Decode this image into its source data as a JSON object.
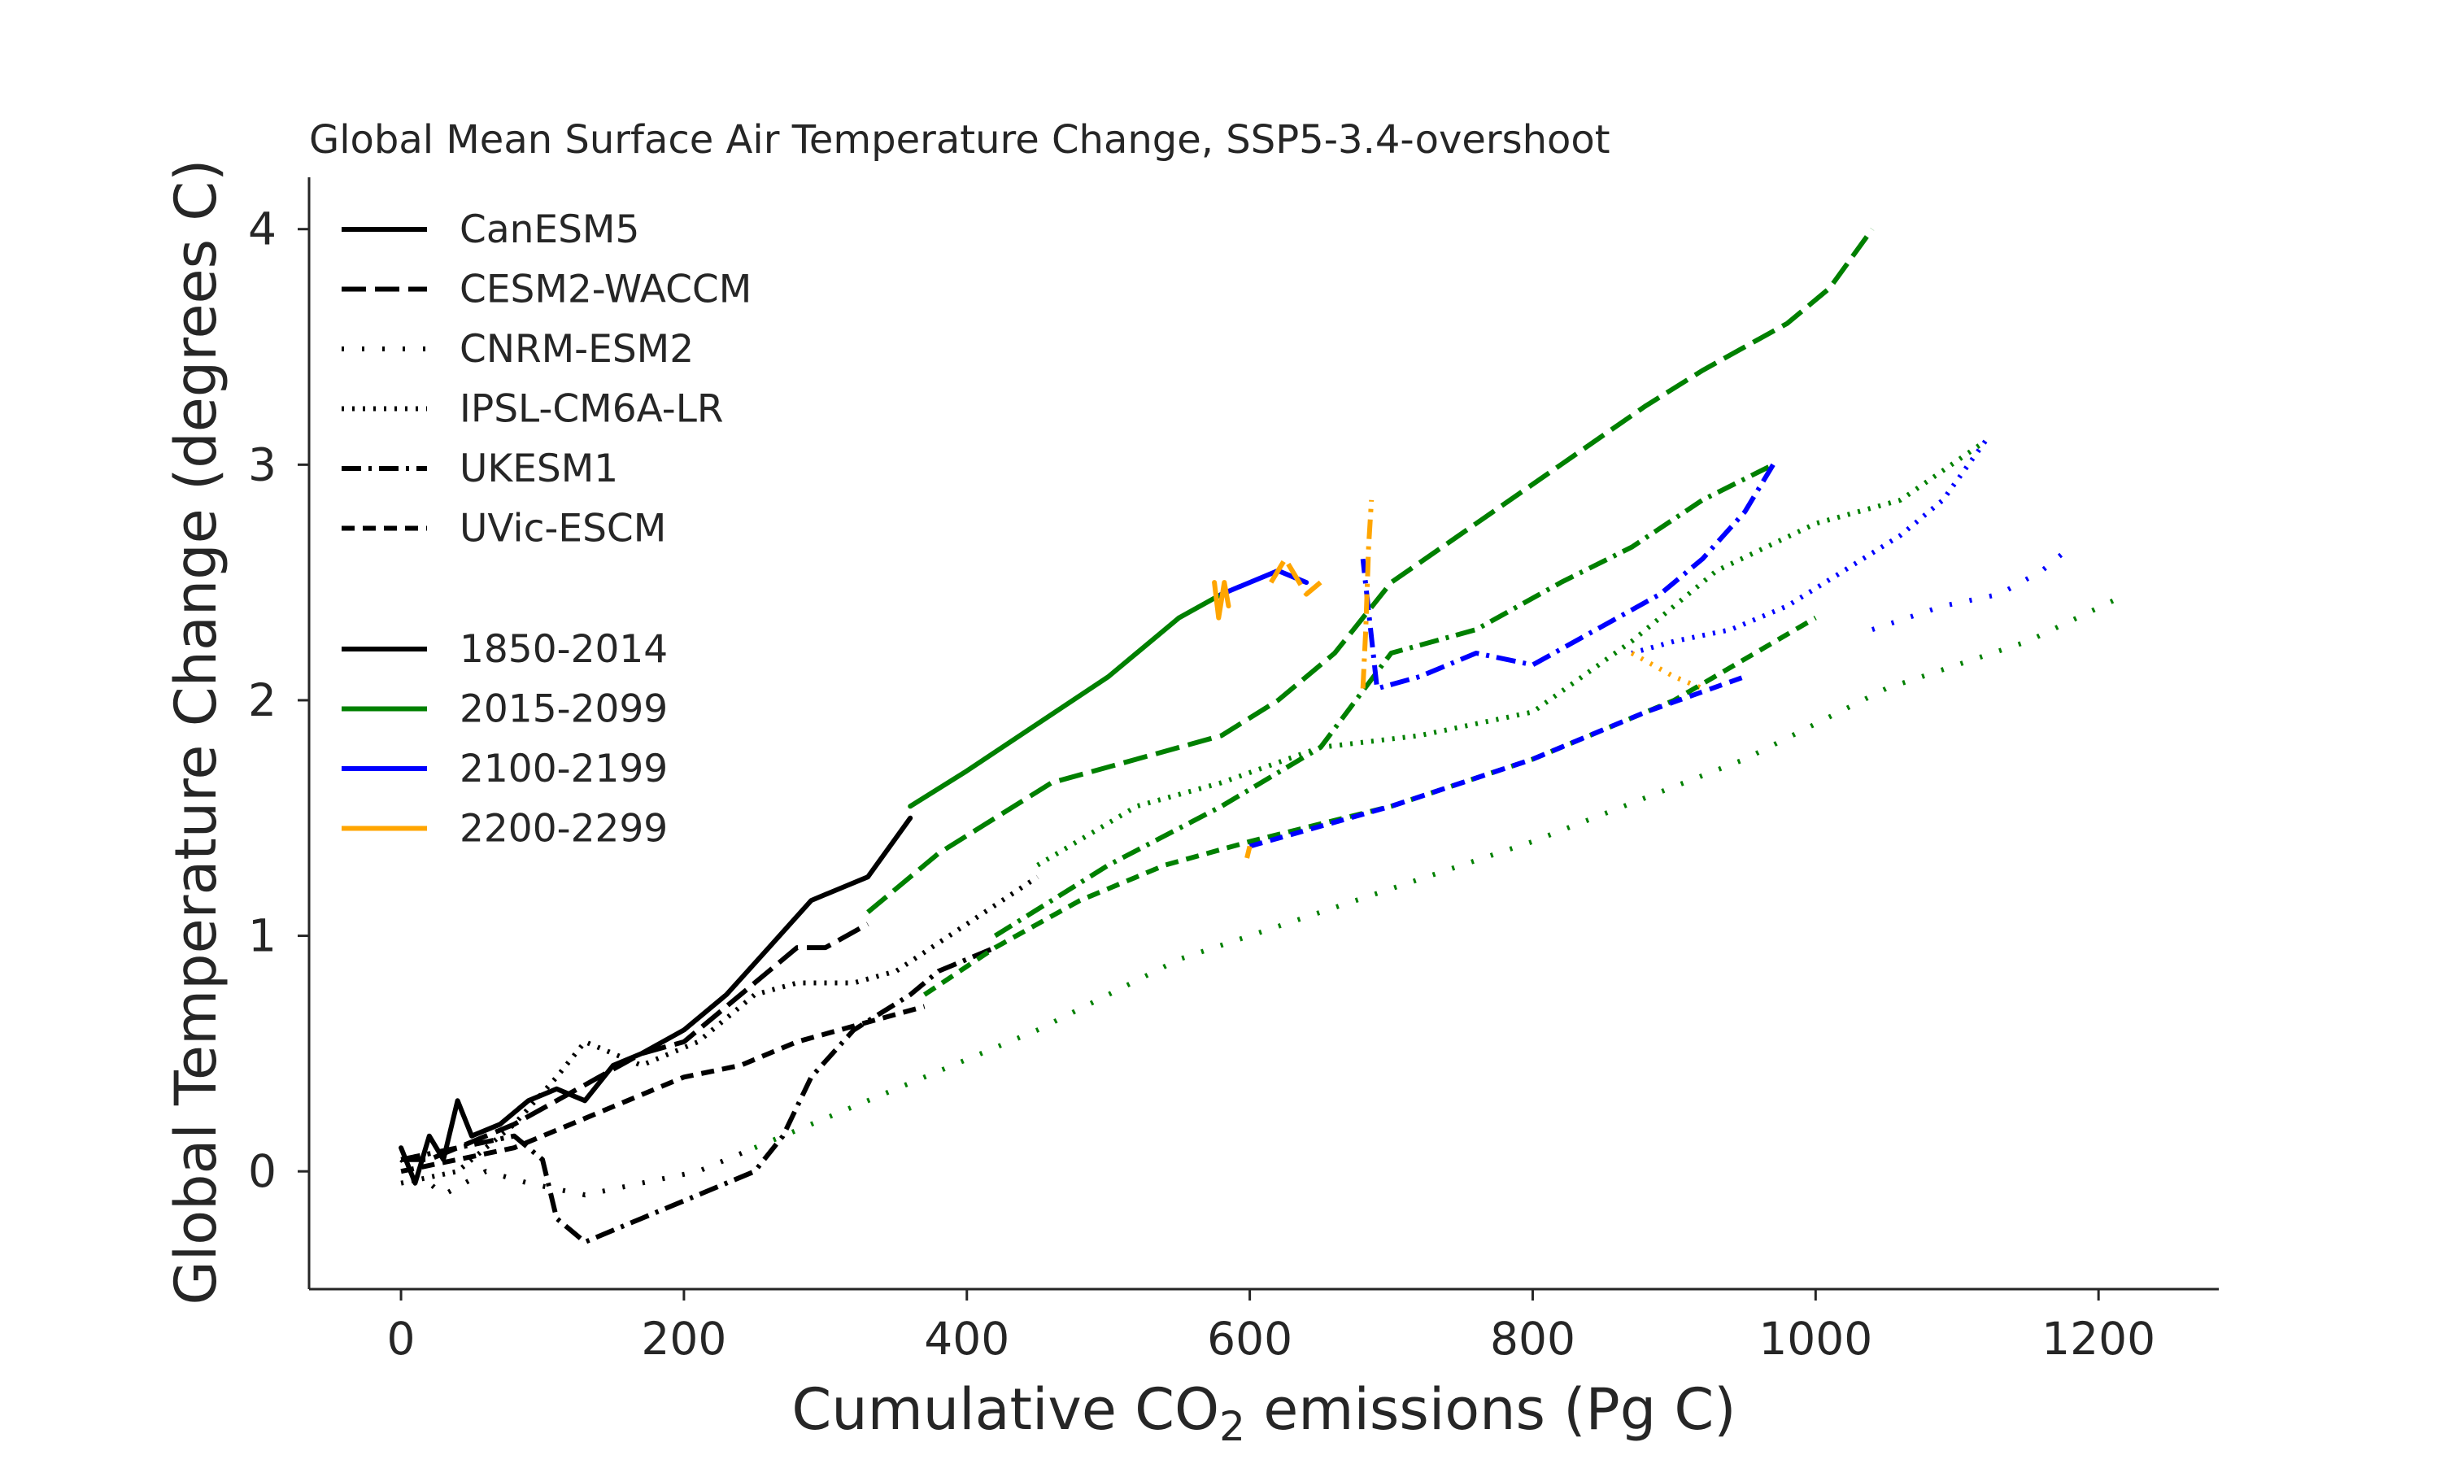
{
  "chart_data": {
    "type": "line",
    "title": "Global Mean Surface Air Temperature Change, SSP5-3.4-overshoot",
    "xlabel": "Cumulative CO",
    "xlabel_sub": "2",
    "xlabel_tail": " emissions (Pg C)",
    "ylabel": "Global Temperature Change (degrees C)",
    "xlim": [
      -65,
      1285
    ],
    "ylim": [
      -0.5,
      4.22
    ],
    "xticks": [
      0,
      200,
      400,
      600,
      800,
      1000,
      1200
    ],
    "xtick_labels": [
      "0",
      "200",
      "400",
      "600",
      "800",
      "1000",
      "1200"
    ],
    "yticks": [
      0,
      1,
      2,
      3,
      4
    ],
    "ytick_labels": [
      "0",
      "1",
      "2",
      "3",
      "4"
    ],
    "grid": false,
    "legend_position": "top-left",
    "legend_models": [
      {
        "label": "CanESM5",
        "dash": "solid"
      },
      {
        "label": "CESM2-WACCM",
        "dash": "longdash"
      },
      {
        "label": "CNRM-ESM2",
        "dash": "sparsedot"
      },
      {
        "label": "IPSL-CM6A-LR",
        "dash": "dot"
      },
      {
        "label": "UKESM1",
        "dash": "dashdot"
      },
      {
        "label": "UVic-ESCM",
        "dash": "dash"
      }
    ],
    "legend_periods": [
      {
        "label": "1850-2014",
        "color": "#000000"
      },
      {
        "label": "2015-2099",
        "color": "#008000"
      },
      {
        "label": "2100-2199",
        "color": "#0000ff"
      },
      {
        "label": "2200-2299",
        "color": "#ffa500"
      }
    ],
    "series": [
      {
        "model": "CanESM5",
        "period": "1850-2014",
        "values": [
          [
            0,
            0.1
          ],
          [
            10,
            -0.05
          ],
          [
            20,
            0.15
          ],
          [
            30,
            0.05
          ],
          [
            40,
            0.3
          ],
          [
            50,
            0.15
          ],
          [
            70,
            0.2
          ],
          [
            90,
            0.3
          ],
          [
            110,
            0.35
          ],
          [
            130,
            0.3
          ],
          [
            150,
            0.45
          ],
          [
            170,
            0.5
          ],
          [
            200,
            0.6
          ],
          [
            230,
            0.75
          ],
          [
            260,
            0.95
          ],
          [
            290,
            1.15
          ],
          [
            310,
            1.2
          ],
          [
            330,
            1.25
          ],
          [
            360,
            1.5
          ]
        ]
      },
      {
        "model": "CanESM5",
        "period": "2015-2099",
        "values": [
          [
            360,
            1.55
          ],
          [
            400,
            1.7
          ],
          [
            450,
            1.9
          ],
          [
            500,
            2.1
          ],
          [
            550,
            2.35
          ],
          [
            580,
            2.45
          ]
        ]
      },
      {
        "model": "CanESM5",
        "period": "2100-2199",
        "values": [
          [
            580,
            2.45
          ],
          [
            600,
            2.5
          ],
          [
            620,
            2.55
          ],
          [
            640,
            2.5
          ]
        ]
      },
      {
        "model": "CanESM5",
        "period": "2200-2299",
        "values": [
          [
            575,
            2.5
          ],
          [
            578,
            2.35
          ],
          [
            582,
            2.5
          ],
          [
            585,
            2.4
          ]
        ]
      },
      {
        "model": "CESM2-WACCM",
        "period": "1850-2014",
        "values": [
          [
            0,
            0.05
          ],
          [
            20,
            0.05
          ],
          [
            40,
            0.1
          ],
          [
            60,
            0.15
          ],
          [
            80,
            0.2
          ],
          [
            110,
            0.3
          ],
          [
            140,
            0.4
          ],
          [
            170,
            0.5
          ],
          [
            200,
            0.55
          ],
          [
            230,
            0.7
          ],
          [
            260,
            0.85
          ],
          [
            280,
            0.95
          ],
          [
            300,
            0.95
          ],
          [
            330,
            1.05
          ]
        ]
      },
      {
        "model": "CESM2-WACCM",
        "period": "2015-2099",
        "values": [
          [
            330,
            1.1
          ],
          [
            380,
            1.35
          ],
          [
            420,
            1.5
          ],
          [
            460,
            1.65
          ],
          [
            520,
            1.75
          ],
          [
            580,
            1.85
          ],
          [
            620,
            2.0
          ],
          [
            660,
            2.2
          ],
          [
            700,
            2.5
          ],
          [
            760,
            2.75
          ],
          [
            820,
            3.0
          ],
          [
            880,
            3.25
          ],
          [
            920,
            3.4
          ],
          [
            950,
            3.5
          ],
          [
            980,
            3.6
          ],
          [
            1010,
            3.75
          ],
          [
            1040,
            4.0
          ]
        ]
      },
      {
        "model": "CESM2-WACCM",
        "period": "2200-2299",
        "values": [
          [
            615,
            2.5
          ],
          [
            625,
            2.6
          ],
          [
            640,
            2.45
          ],
          [
            650,
            2.5
          ]
        ]
      },
      {
        "model": "CNRM-ESM2",
        "period": "1850-2014",
        "values": [
          [
            0,
            0.05
          ],
          [
            30,
            -0.1
          ],
          [
            60,
            0.0
          ],
          [
            90,
            -0.05
          ],
          [
            130,
            -0.1
          ],
          [
            170,
            -0.05
          ],
          [
            210,
            0.0
          ],
          [
            250,
            0.1
          ]
        ]
      },
      {
        "model": "CNRM-ESM2",
        "period": "2015-2099",
        "values": [
          [
            250,
            0.1
          ],
          [
            350,
            0.35
          ],
          [
            450,
            0.6
          ],
          [
            550,
            0.9
          ],
          [
            650,
            1.1
          ],
          [
            800,
            1.4
          ],
          [
            950,
            1.75
          ],
          [
            1050,
            2.05
          ],
          [
            1150,
            2.25
          ],
          [
            1220,
            2.45
          ]
        ]
      },
      {
        "model": "CNRM-ESM2",
        "period": "2100-2199",
        "values": [
          [
            1040,
            2.3
          ],
          [
            1090,
            2.4
          ],
          [
            1130,
            2.45
          ],
          [
            1160,
            2.55
          ],
          [
            1180,
            2.65
          ]
        ]
      },
      {
        "model": "IPSL-CM6A-LR",
        "period": "1850-2014",
        "values": [
          [
            0,
            -0.05
          ],
          [
            40,
            0.0
          ],
          [
            80,
            0.2
          ],
          [
            110,
            0.4
          ],
          [
            130,
            0.55
          ],
          [
            170,
            0.45
          ],
          [
            210,
            0.55
          ],
          [
            250,
            0.75
          ],
          [
            280,
            0.8
          ],
          [
            320,
            0.8
          ],
          [
            350,
            0.85
          ],
          [
            400,
            1.05
          ],
          [
            450,
            1.25
          ]
        ]
      },
      {
        "model": "IPSL-CM6A-LR",
        "period": "2015-2099",
        "values": [
          [
            450,
            1.3
          ],
          [
            520,
            1.55
          ],
          [
            580,
            1.65
          ],
          [
            650,
            1.8
          ],
          [
            720,
            1.85
          ],
          [
            800,
            1.95
          ],
          [
            870,
            2.25
          ],
          [
            930,
            2.55
          ],
          [
            1000,
            2.75
          ],
          [
            1060,
            2.85
          ],
          [
            1120,
            3.1
          ]
        ]
      },
      {
        "model": "IPSL-CM6A-LR",
        "period": "2100-2199",
        "values": [
          [
            1120,
            3.1
          ],
          [
            1090,
            2.85
          ],
          [
            1060,
            2.7
          ],
          [
            1020,
            2.55
          ],
          [
            980,
            2.4
          ],
          [
            940,
            2.3
          ],
          [
            900,
            2.25
          ],
          [
            870,
            2.2
          ]
        ]
      },
      {
        "model": "IPSL-CM6A-LR",
        "period": "2200-2299",
        "values": [
          [
            870,
            2.2
          ],
          [
            900,
            2.1
          ],
          [
            920,
            2.05
          ]
        ]
      },
      {
        "model": "UKESM1",
        "period": "1850-2014",
        "values": [
          [
            0,
            0.05
          ],
          [
            40,
            0.1
          ],
          [
            80,
            0.15
          ],
          [
            100,
            0.05
          ],
          [
            110,
            -0.2
          ],
          [
            130,
            -0.3
          ],
          [
            170,
            -0.2
          ],
          [
            210,
            -0.1
          ],
          [
            250,
            0.0
          ],
          [
            270,
            0.15
          ],
          [
            290,
            0.4
          ],
          [
            320,
            0.6
          ],
          [
            360,
            0.75
          ],
          [
            380,
            0.85
          ],
          [
            420,
            0.95
          ]
        ]
      },
      {
        "model": "UKESM1",
        "period": "2015-2099",
        "values": [
          [
            420,
            1.0
          ],
          [
            500,
            1.3
          ],
          [
            580,
            1.55
          ],
          [
            650,
            1.8
          ],
          [
            700,
            2.2
          ],
          [
            760,
            2.3
          ],
          [
            820,
            2.5
          ],
          [
            870,
            2.65
          ],
          [
            920,
            2.85
          ],
          [
            970,
            3.0
          ]
        ]
      },
      {
        "model": "UKESM1",
        "period": "2100-2199",
        "values": [
          [
            970,
            3.0
          ],
          [
            950,
            2.8
          ],
          [
            920,
            2.6
          ],
          [
            890,
            2.45
          ],
          [
            860,
            2.35
          ],
          [
            830,
            2.25
          ],
          [
            800,
            2.15
          ],
          [
            760,
            2.2
          ],
          [
            720,
            2.1
          ],
          [
            690,
            2.05
          ],
          [
            680,
            2.6
          ]
        ]
      },
      {
        "model": "UKESM1",
        "period": "2200-2299",
        "values": [
          [
            680,
            2.05
          ],
          [
            682,
            2.3
          ],
          [
            684,
            2.65
          ],
          [
            686,
            2.85
          ]
        ]
      },
      {
        "model": "UVic-ESCM",
        "period": "1850-2014",
        "values": [
          [
            0,
            0.0
          ],
          [
            40,
            0.05
          ],
          [
            80,
            0.1
          ],
          [
            120,
            0.2
          ],
          [
            160,
            0.3
          ],
          [
            200,
            0.4
          ],
          [
            240,
            0.45
          ],
          [
            280,
            0.55
          ],
          [
            310,
            0.6
          ],
          [
            340,
            0.65
          ],
          [
            370,
            0.7
          ]
        ]
      },
      {
        "model": "UVic-ESCM",
        "period": "2015-2099",
        "values": [
          [
            370,
            0.75
          ],
          [
            420,
            0.95
          ],
          [
            480,
            1.15
          ],
          [
            540,
            1.3
          ],
          [
            600,
            1.4
          ],
          [
            700,
            1.55
          ],
          [
            800,
            1.75
          ],
          [
            900,
            2.0
          ],
          [
            1000,
            2.35
          ]
        ]
      },
      {
        "model": "UVic-ESCM",
        "period": "2100-2199",
        "values": [
          [
            600,
            1.38
          ],
          [
            700,
            1.55
          ],
          [
            800,
            1.75
          ],
          [
            880,
            1.95
          ],
          [
            950,
            2.1
          ]
        ]
      },
      {
        "model": "UVic-ESCM",
        "period": "2200-2299",
        "values": [
          [
            598,
            1.33
          ],
          [
            600,
            1.38
          ]
        ]
      }
    ]
  }
}
